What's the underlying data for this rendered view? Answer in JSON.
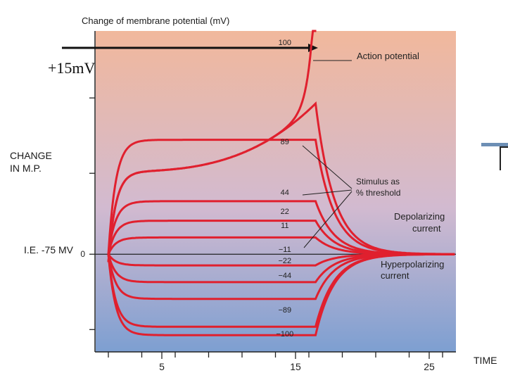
{
  "title": "Change of membrane potential (mV)",
  "arrow_label": "+15mV",
  "side_labels": {
    "change_line1": "CHANGE",
    "change_line2": "IN M.P.",
    "resting": "I.E. -75 MV",
    "time": "TIME"
  },
  "chart_data": {
    "type": "line",
    "title": "Change of membrane potential (mV)",
    "xlabel": "TIME",
    "ylabel": "CHANGE IN M.P.",
    "x_ticks": [
      5,
      15,
      25
    ],
    "y_ticks": [
      0
    ],
    "xlim": [
      0,
      27
    ],
    "ylim": [
      -3.5,
      8
    ],
    "stimulus_on": 0,
    "stimulus_off": 15.5,
    "series": [
      {
        "name": "100",
        "plateau": 7.6,
        "type": "action_potential"
      },
      {
        "name": "100 (subthreshold)",
        "plateau": 5.4,
        "type": "rising"
      },
      {
        "name": "89",
        "plateau": 4.1,
        "type": "plateau"
      },
      {
        "name": "44",
        "plateau": 1.9,
        "type": "plateau"
      },
      {
        "name": "22",
        "plateau": 1.2,
        "type": "plateau"
      },
      {
        "name": "11",
        "plateau": 0.6,
        "type": "plateau"
      },
      {
        "name": "-11",
        "plateau": -0.4,
        "type": "plateau"
      },
      {
        "name": "-22",
        "plateau": -1.0,
        "type": "plateau"
      },
      {
        "name": "-44",
        "plateau": -1.6,
        "type": "plateau"
      },
      {
        "name": "-89",
        "plateau": -2.6,
        "type": "plateau"
      },
      {
        "name": "-100",
        "plateau": -2.9,
        "type": "plateau"
      }
    ],
    "annotations": {
      "action_potential": "Action potential",
      "stimulus_line1": "Stimulus as",
      "stimulus_line2": "% threshold",
      "depol_line1": "Depolarizing",
      "depol_line2": "current",
      "hyper_line1": "Hyperpolarizing",
      "hyper_line2": "current"
    },
    "curve_labels": [
      "100",
      "89",
      "44",
      "22",
      "11",
      "−11",
      "−22",
      "−44",
      "−89",
      "−100"
    ]
  },
  "colors": {
    "curve": "#e0202e",
    "grad_top": "#f1b89c",
    "grad_mid": "#d2bad0",
    "grad_bottom": "#7d9fd1",
    "highlight": "#c8c45a"
  }
}
